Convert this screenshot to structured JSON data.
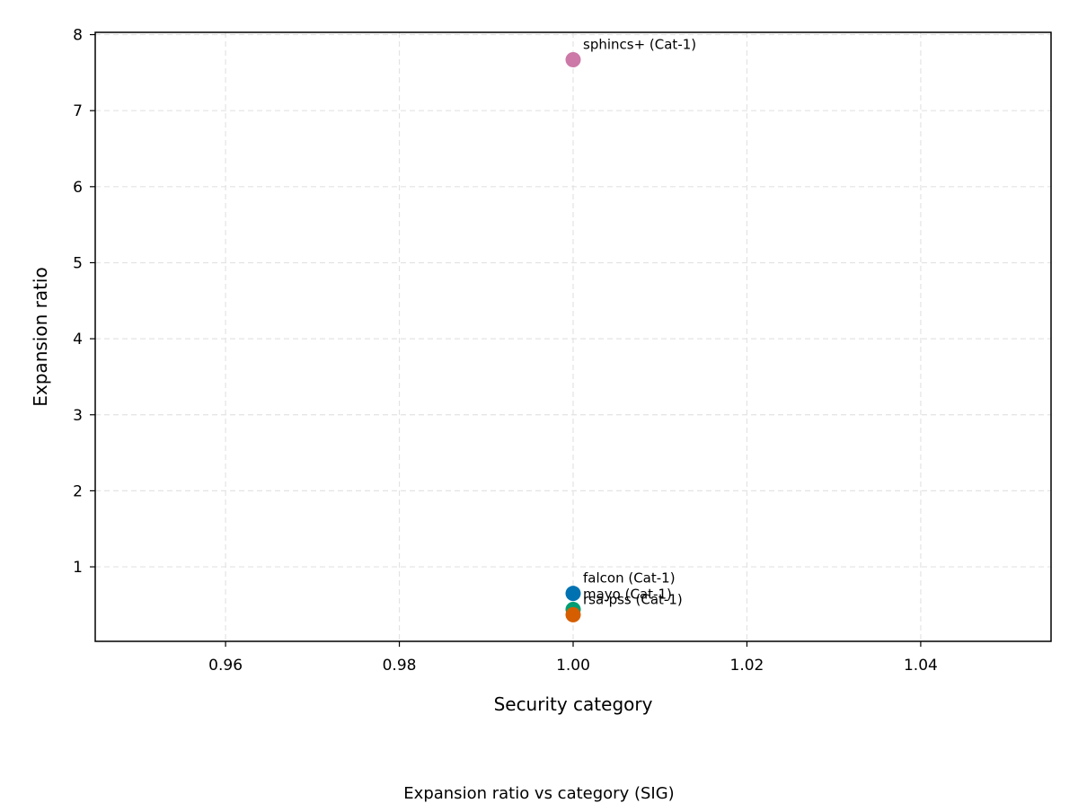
{
  "chart_data": {
    "type": "scatter",
    "title": "",
    "caption": "Expansion ratio vs category (SIG)",
    "xlabel": "Security category",
    "ylabel": "Expansion ratio",
    "xlim": [
      0.945,
      1.055
    ],
    "ylim": [
      0.02,
      8.03
    ],
    "xticks": [
      0.96,
      0.98,
      1.0,
      1.02,
      1.04
    ],
    "xtick_labels": [
      "0.96",
      "0.98",
      "1.00",
      "1.02",
      "1.04"
    ],
    "yticks": [
      1,
      2,
      3,
      4,
      5,
      6,
      7,
      8
    ],
    "ytick_labels": [
      "1",
      "2",
      "3",
      "4",
      "5",
      "6",
      "7",
      "8"
    ],
    "grid": true,
    "grid_style": "dashed",
    "points": [
      {
        "label": "sphincs+ (Cat-1)",
        "x": 1.0,
        "y": 7.67,
        "color": "#cc79a7"
      },
      {
        "label": "falcon (Cat-1)",
        "x": 1.0,
        "y": 0.65,
        "color": "#0072b2"
      },
      {
        "label": "mayo (Cat-1)",
        "x": 1.0,
        "y": 0.44,
        "color": "#009e73"
      },
      {
        "label": "rsa-pss (Cat-1)",
        "x": 1.0,
        "y": 0.37,
        "color": "#d55e00"
      }
    ]
  }
}
